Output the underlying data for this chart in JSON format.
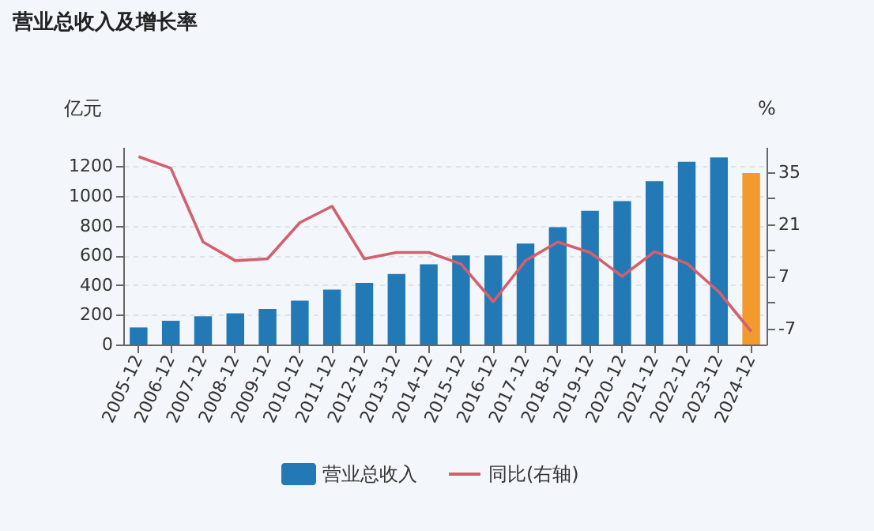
{
  "chart_data": {
    "type": "bar",
    "title": "营业总收入及增长率",
    "ylabel": "亿元",
    "y2label": "%",
    "categories": [
      "2005-12",
      "2006-12",
      "2007-12",
      "2008-12",
      "2009-12",
      "2010-12",
      "2011-12",
      "2012-12",
      "2013-12",
      "2014-12",
      "2015-12",
      "2016-12",
      "2017-12",
      "2018-12",
      "2019-12",
      "2020-12",
      "2021-12",
      "2022-12",
      "2023-12",
      "2024-12"
    ],
    "series": [
      {
        "name": "营业总收入",
        "type": "bar",
        "color": "#2379b5",
        "colors": [
          "#2379b5",
          "#2379b5",
          "#2379b5",
          "#2379b5",
          "#2379b5",
          "#2379b5",
          "#2379b5",
          "#2379b5",
          "#2379b5",
          "#2379b5",
          "#2379b5",
          "#2379b5",
          "#2379b5",
          "#2379b5",
          "#2379b5",
          "#2379b5",
          "#2379b5",
          "#2379b5",
          "#2379b5",
          "#f39a2e"
        ],
        "values": [
          115,
          160,
          190,
          210,
          240,
          295,
          370,
          415,
          475,
          540,
          600,
          600,
          680,
          790,
          900,
          965,
          1100,
          1230,
          1260,
          1155
        ]
      },
      {
        "name": "同比(右轴)",
        "type": "line",
        "axis": "y2",
        "color": "#d3606c",
        "values": [
          39.1,
          36.0,
          16.2,
          11.2,
          11.7,
          21.4,
          25.8,
          11.7,
          13.4,
          13.4,
          10.3,
          0.2,
          11.2,
          16.2,
          13.4,
          7.0,
          13.6,
          10.5,
          2.8,
          -7.8
        ]
      }
    ],
    "ylim": [
      0,
      1330
    ],
    "yticks": [
      0,
      200,
      400,
      600,
      800,
      1000,
      1200
    ],
    "y2lim": [
      -11.3,
      41.7
    ],
    "y2ticks": [
      -7,
      {
        "value": 0,
        "label": null
      },
      7,
      {
        "value": 14,
        "label": null
      },
      21,
      {
        "value": 28,
        "label": null
      },
      35
    ],
    "grid": "y",
    "legend": "bottom"
  }
}
